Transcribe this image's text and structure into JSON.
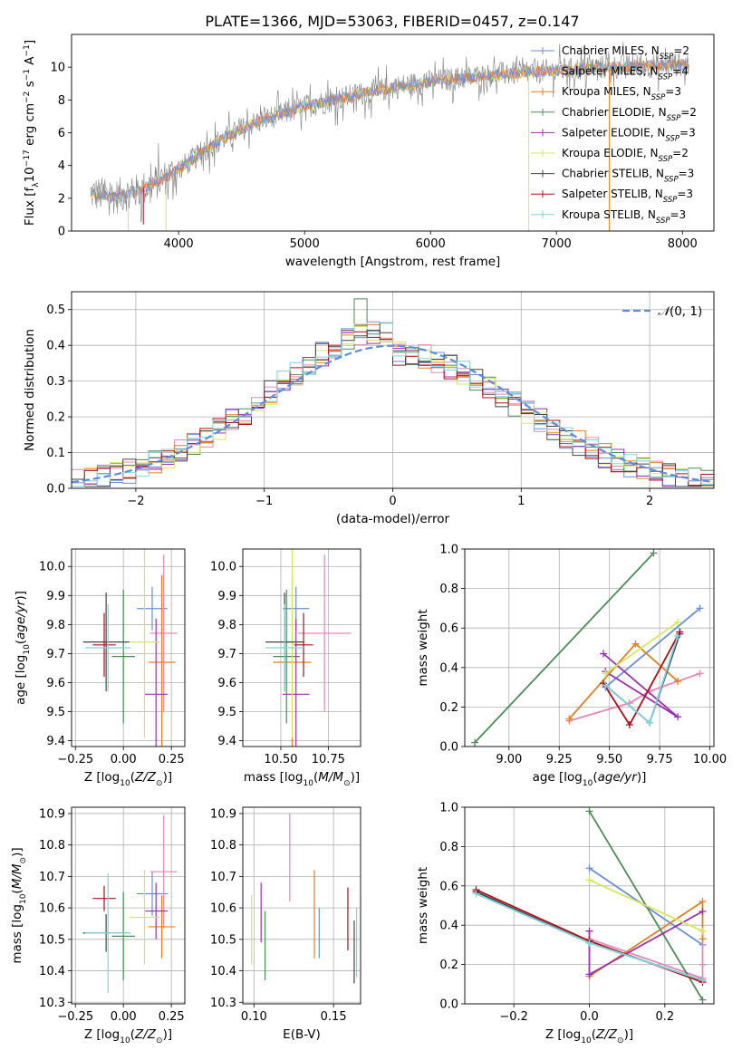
{
  "title": "PLATE=1366, MJD=53063, FIBERID=0457, z=0.147",
  "colors": {
    "chabrier_miles": "#6a8fd9",
    "salpeter_miles": "#e487b7",
    "kroupa_miles": "#e67e22",
    "chabrier_elodie": "#4e8c56",
    "salpeter_elodie": "#9b30b0",
    "kroupa_elodie": "#d5e85a",
    "chabrier_stelib": "#444444",
    "salpeter_stelib": "#b00e16",
    "kroupa_stelib": "#7ed4de",
    "data": "#808080",
    "gauss": "#5b8ddb"
  },
  "legend": [
    {
      "key": "chabrier_miles",
      "text": "Chabrier MILES, N",
      "sub": "SSP",
      "num": "=2"
    },
    {
      "key": "salpeter_miles",
      "text": "Salpeter MILES, N",
      "sub": "SSP",
      "num": "=4"
    },
    {
      "key": "kroupa_miles",
      "text": "Kroupa MILES, N",
      "sub": "SSP",
      "num": "=3"
    },
    {
      "key": "chabrier_elodie",
      "text": "Chabrier ELODIE, N",
      "sub": "SSP",
      "num": "=2"
    },
    {
      "key": "salpeter_elodie",
      "text": "Salpeter ELODIE, N",
      "sub": "SSP",
      "num": "=3"
    },
    {
      "key": "kroupa_elodie",
      "text": "Kroupa ELODIE, N",
      "sub": "SSP",
      "num": "=2"
    },
    {
      "key": "chabrier_stelib",
      "text": "Chabrier STELIB, N",
      "sub": "SSP",
      "num": "=3"
    },
    {
      "key": "salpeter_stelib",
      "text": "Salpeter STELIB, N",
      "sub": "SSP",
      "num": "=3"
    },
    {
      "key": "kroupa_stelib",
      "text": "Kroupa STELIB, N",
      "sub": "SSP",
      "num": "=3"
    }
  ],
  "chart_data": [
    {
      "type": "line",
      "name": "spectrum",
      "xlabel": "wavelength [Angstrom, rest frame]",
      "ylabel": "Flux [fλ10⁻¹⁷ erg cm⁻² s⁻¹ A⁻¹]",
      "xlim": [
        3150,
        8250
      ],
      "ylim": [
        0,
        12
      ],
      "xticks": [
        4000,
        5000,
        6000,
        7000,
        8000
      ],
      "yticks": [
        0,
        2,
        4,
        6,
        8,
        10
      ],
      "continuum": {
        "x": [
          3300,
          3500,
          3700,
          3900,
          4100,
          4300,
          4600,
          5000,
          5400,
          5800,
          6200,
          6600,
          7000,
          7400,
          7800,
          8050
        ],
        "y": [
          2.3,
          2.1,
          2.5,
          3.3,
          4.3,
          5.4,
          6.6,
          7.6,
          8.3,
          8.9,
          9.3,
          9.6,
          9.8,
          10.0,
          10.1,
          10.2
        ]
      }
    },
    {
      "type": "line",
      "name": "residual_histogram",
      "xlabel": "(data-model)/error",
      "ylabel": "Normed distribution",
      "xlim": [
        -2.5,
        2.5
      ],
      "ylim": [
        0,
        0.55
      ],
      "xticks": [
        -2,
        -1,
        0,
        1,
        2
      ],
      "yticks": [
        0.0,
        0.1,
        0.2,
        0.3,
        0.4,
        0.5
      ],
      "gauss_label": "N(0,1)"
    },
    {
      "type": "scatter",
      "name": "age_vs_Z",
      "xlabel": "Z [log10(Z/Z⊙)]",
      "ylabel": "age  [log10(age/yr)]",
      "xlim": [
        -0.27,
        0.32
      ],
      "ylim": [
        9.38,
        10.06
      ],
      "xticks": [
        -0.25,
        0.0,
        0.25
      ],
      "yticks": [
        9.4,
        9.5,
        9.6,
        9.7,
        9.8,
        9.9,
        10.0
      ],
      "points": [
        {
          "key": "chabrier_miles",
          "x": 0.15,
          "y": 9.855,
          "xerr": 0.08,
          "yerr": 0.075
        },
        {
          "key": "salpeter_miles",
          "x": 0.21,
          "y": 9.77,
          "xerr": 0.07,
          "yerr": 0.27
        },
        {
          "key": "kroupa_miles",
          "x": 0.2,
          "y": 9.67,
          "xerr": 0.07,
          "yerr": 0.3
        },
        {
          "key": "chabrier_elodie",
          "x": 0.0,
          "y": 9.69,
          "xerr": 0.06,
          "yerr": 0.23
        },
        {
          "key": "salpeter_elodie",
          "x": 0.17,
          "y": 9.56,
          "xerr": 0.06,
          "yerr": 0.26
        },
        {
          "key": "kroupa_elodie",
          "x": 0.11,
          "y": 9.74,
          "xerr": 0.08,
          "yerr": 0.33
        },
        {
          "key": "chabrier_stelib",
          "x": -0.09,
          "y": 9.74,
          "xerr": 0.12,
          "yerr": 0.17
        },
        {
          "key": "salpeter_stelib",
          "x": -0.1,
          "y": 9.73,
          "xerr": 0.06,
          "yerr": 0.11
        },
        {
          "key": "kroupa_stelib",
          "x": -0.08,
          "y": 9.72,
          "xerr": 0.12,
          "yerr": 0.15
        }
      ]
    },
    {
      "type": "scatter",
      "name": "age_vs_mass",
      "xlabel": "mass [log10(M/M⊙)]",
      "ylabel": "",
      "xlim": [
        10.3,
        10.92
      ],
      "ylim": [
        9.38,
        10.06
      ],
      "xticks": [
        10.5,
        10.75
      ],
      "yticks": [
        9.4,
        9.5,
        9.6,
        9.7,
        9.8,
        9.9,
        10.0
      ],
      "points": [
        {
          "key": "chabrier_miles",
          "x": 10.58,
          "y": 9.855,
          "xerr": 0.07,
          "yerr": 0.075
        },
        {
          "key": "salpeter_miles",
          "x": 10.73,
          "y": 9.77,
          "xerr": 0.14,
          "yerr": 0.27
        },
        {
          "key": "kroupa_miles",
          "x": 10.56,
          "y": 9.67,
          "xerr": 0.1,
          "yerr": 0.3
        },
        {
          "key": "chabrier_elodie",
          "x": 10.53,
          "y": 9.69,
          "xerr": 0.07,
          "yerr": 0.23
        },
        {
          "key": "salpeter_elodie",
          "x": 10.58,
          "y": 9.56,
          "xerr": 0.07,
          "yerr": 0.26
        },
        {
          "key": "kroupa_elodie",
          "x": 10.56,
          "y": 9.74,
          "xerr": 0.07,
          "yerr": 0.33
        },
        {
          "key": "chabrier_stelib",
          "x": 10.52,
          "y": 9.74,
          "xerr": 0.1,
          "yerr": 0.17
        },
        {
          "key": "salpeter_stelib",
          "x": 10.62,
          "y": 9.73,
          "xerr": 0.05,
          "yerr": 0.11
        },
        {
          "key": "kroupa_stelib",
          "x": 10.52,
          "y": 9.72,
          "xerr": 0.1,
          "yerr": 0.15
        }
      ]
    },
    {
      "type": "line",
      "name": "weight_vs_age",
      "xlabel": "age  [log10(age/yr)]",
      "ylabel": "mass weight",
      "xlim": [
        8.78,
        10.02
      ],
      "ylim": [
        0,
        1
      ],
      "xticks": [
        9.0,
        9.25,
        9.5,
        9.75,
        10.0
      ],
      "yticks": [
        0.0,
        0.2,
        0.4,
        0.6,
        0.8,
        1.0
      ],
      "series": [
        {
          "key": "chabrier_miles",
          "x": [
            9.48,
            9.95
          ],
          "y": [
            0.3,
            0.7
          ]
        },
        {
          "key": "salpeter_miles",
          "x": [
            9.3,
            9.6,
            9.7,
            9.95
          ],
          "y": [
            0.13,
            0.22,
            0.28,
            0.37
          ]
        },
        {
          "key": "kroupa_miles",
          "x": [
            9.3,
            9.63,
            9.84
          ],
          "y": [
            0.14,
            0.52,
            0.33
          ]
        },
        {
          "key": "chabrier_elodie",
          "x": [
            8.83,
            9.72
          ],
          "y": [
            0.02,
            0.98
          ]
        },
        {
          "key": "salpeter_elodie",
          "x": [
            9.47,
            9.84,
            9.48
          ],
          "y": [
            0.47,
            0.15,
            0.38
          ]
        },
        {
          "key": "kroupa_elodie",
          "x": [
            9.48,
            9.84
          ],
          "y": [
            0.37,
            0.63
          ]
        },
        {
          "key": "chabrier_stelib",
          "x": [
            9.48,
            9.7,
            9.85
          ],
          "y": [
            0.31,
            0.12,
            0.57
          ]
        },
        {
          "key": "salpeter_stelib",
          "x": [
            9.47,
            9.6,
            9.85
          ],
          "y": [
            0.32,
            0.11,
            0.58
          ]
        },
        {
          "key": "kroupa_stelib",
          "x": [
            9.48,
            9.7,
            9.84
          ],
          "y": [
            0.31,
            0.12,
            0.56
          ]
        }
      ]
    },
    {
      "type": "scatter",
      "name": "mass_vs_Z",
      "xlabel": "Z [log10(Z/Z⊙)]",
      "ylabel": "mass [log10(M/M⊙)]",
      "xlim": [
        -0.27,
        0.32
      ],
      "ylim": [
        10.295,
        10.92
      ],
      "xticks": [
        -0.25,
        0.0,
        0.25
      ],
      "yticks": [
        10.3,
        10.4,
        10.5,
        10.6,
        10.7,
        10.8,
        10.9
      ],
      "points": [
        {
          "key": "chabrier_miles",
          "x": 0.15,
          "y": 10.645,
          "xerr": 0.08,
          "yerr": 0.07
        },
        {
          "key": "salpeter_miles",
          "x": 0.21,
          "y": 10.715,
          "xerr": 0.07,
          "yerr": 0.18
        },
        {
          "key": "kroupa_miles",
          "x": 0.2,
          "y": 10.54,
          "xerr": 0.07,
          "yerr": 0.1
        },
        {
          "key": "chabrier_elodie",
          "x": 0.0,
          "y": 10.51,
          "xerr": 0.06,
          "yerr": 0.14
        },
        {
          "key": "salpeter_elodie",
          "x": 0.17,
          "y": 10.59,
          "xerr": 0.06,
          "yerr": 0.09
        },
        {
          "key": "kroupa_elodie",
          "x": 0.11,
          "y": 10.57,
          "xerr": 0.08,
          "yerr": 0.15
        },
        {
          "key": "chabrier_stelib",
          "x": -0.09,
          "y": 10.52,
          "xerr": 0.12,
          "yerr": 0.06
        },
        {
          "key": "salpeter_stelib",
          "x": -0.1,
          "y": 10.63,
          "xerr": 0.06,
          "yerr": 0.04
        },
        {
          "key": "kroupa_stelib",
          "x": -0.08,
          "y": 10.52,
          "xerr": 0.12,
          "yerr": 0.19
        }
      ]
    },
    {
      "type": "scatter",
      "name": "mass_vs_ebv",
      "xlabel": "E(B-V)",
      "ylabel": "",
      "xlim": [
        0.093,
        0.167
      ],
      "ylim": [
        10.295,
        10.92
      ],
      "xticks": [
        0.1,
        0.15
      ],
      "yticks": [
        10.3,
        10.4,
        10.5,
        10.6,
        10.7,
        10.8,
        10.9
      ],
      "points": [
        {
          "key": "chabrier_miles",
          "x": 0.141,
          "y": 10.52,
          "xerr": 0,
          "yerr": 0.08
        },
        {
          "key": "salpeter_miles",
          "x": 0.1225,
          "y": 10.76,
          "xerr": 0,
          "yerr": 0.14
        },
        {
          "key": "kroupa_miles",
          "x": 0.138,
          "y": 10.58,
          "xerr": 0,
          "yerr": 0.14
        },
        {
          "key": "chabrier_elodie",
          "x": 0.107,
          "y": 10.48,
          "xerr": 0,
          "yerr": 0.11
        },
        {
          "key": "salpeter_elodie",
          "x": 0.1045,
          "y": 10.585,
          "xerr": 0,
          "yerr": 0.095
        },
        {
          "key": "kroupa_elodie",
          "x": 0.0985,
          "y": 10.53,
          "xerr": 0,
          "yerr": 0.11
        },
        {
          "key": "chabrier_stelib",
          "x": 0.163,
          "y": 10.46,
          "xerr": 0,
          "yerr": 0.1
        },
        {
          "key": "salpeter_stelib",
          "x": 0.159,
          "y": 10.565,
          "xerr": 0,
          "yerr": 0.1
        },
        {
          "key": "kroupa_stelib",
          "x": 0.1645,
          "y": 10.49,
          "xerr": 0,
          "yerr": 0.11
        }
      ]
    },
    {
      "type": "line",
      "name": "weight_vs_Z",
      "xlabel": "Z [log10(Z/Z⊙)]",
      "ylabel": "mass weight",
      "xlim": [
        -0.33,
        0.33
      ],
      "ylim": [
        0,
        1
      ],
      "xticks": [
        -0.2,
        0.0,
        0.2
      ],
      "yticks": [
        0.0,
        0.2,
        0.4,
        0.6,
        0.8,
        1.0
      ],
      "series": [
        {
          "key": "chabrier_miles",
          "x": [
            0.0,
            0.3
          ],
          "y": [
            0.69,
            0.3
          ]
        },
        {
          "key": "salpeter_miles",
          "x": [
            0.0,
            0.3,
            0.3,
            0.3
          ],
          "y": [
            0.33,
            0.13,
            0.2,
            0.37
          ]
        },
        {
          "key": "kroupa_miles",
          "x": [
            0.0,
            0.3,
            0.3
          ],
          "y": [
            0.14,
            0.52,
            0.33
          ]
        },
        {
          "key": "chabrier_elodie",
          "x": [
            0.0,
            0.3
          ],
          "y": [
            0.98,
            0.02
          ]
        },
        {
          "key": "salpeter_elodie",
          "x": [
            0.0,
            0.0,
            0.3
          ],
          "y": [
            0.37,
            0.15,
            0.47
          ]
        },
        {
          "key": "kroupa_elodie",
          "x": [
            0.0,
            0.3
          ],
          "y": [
            0.63,
            0.37
          ]
        },
        {
          "key": "chabrier_stelib",
          "x": [
            -0.3,
            0.0,
            0.3
          ],
          "y": [
            0.57,
            0.31,
            0.12
          ]
        },
        {
          "key": "salpeter_stelib",
          "x": [
            -0.3,
            0.0,
            0.3
          ],
          "y": [
            0.58,
            0.32,
            0.11
          ]
        },
        {
          "key": "kroupa_stelib",
          "x": [
            -0.3,
            0.0,
            0.3
          ],
          "y": [
            0.56,
            0.31,
            0.12
          ]
        }
      ]
    }
  ]
}
